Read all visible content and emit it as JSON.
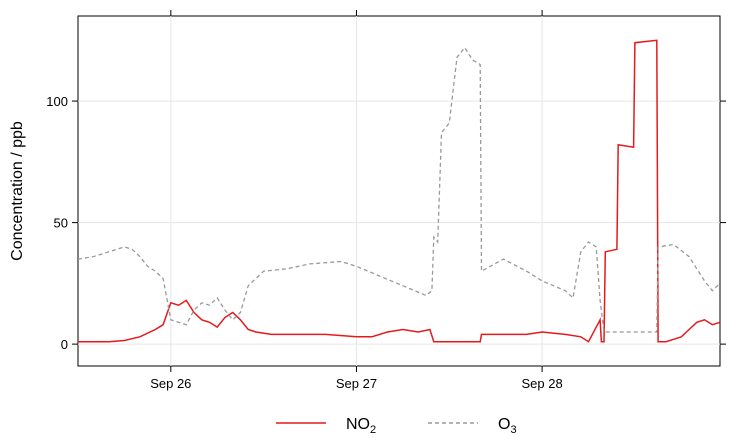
{
  "chart_data": {
    "type": "line",
    "title": "",
    "xlabel": "",
    "ylabel": "Concentration / ppb",
    "xlim": [
      "2020-09-25T12:00",
      "2020-09-28T23:00"
    ],
    "ylim": [
      -9,
      135
    ],
    "x_ticks": [
      "Sep 26",
      "Sep 27",
      "Sep 28"
    ],
    "x_tick_positions": [
      "2020-09-26T00:00",
      "2020-09-27T00:00",
      "2020-09-28T00:00"
    ],
    "y_ticks": [
      0,
      50,
      100
    ],
    "grid": true,
    "legend_position": "bottom",
    "series": [
      {
        "name": "NO",
        "name_sub": "2",
        "color": "#e41a1c",
        "style": "solid",
        "points": [
          [
            "2020-09-25T12:00",
            1
          ],
          [
            "2020-09-25T14:00",
            1
          ],
          [
            "2020-09-25T16:00",
            1
          ],
          [
            "2020-09-25T18:00",
            1.5
          ],
          [
            "2020-09-25T20:00",
            3
          ],
          [
            "2020-09-25T22:00",
            6
          ],
          [
            "2020-09-25T23:00",
            8
          ],
          [
            "2020-09-26T00:00",
            17
          ],
          [
            "2020-09-26T01:00",
            16
          ],
          [
            "2020-09-26T02:00",
            18
          ],
          [
            "2020-09-26T03:00",
            13
          ],
          [
            "2020-09-26T04:00",
            10
          ],
          [
            "2020-09-26T05:00",
            9
          ],
          [
            "2020-09-26T06:00",
            7
          ],
          [
            "2020-09-26T07:00",
            11
          ],
          [
            "2020-09-26T08:00",
            13
          ],
          [
            "2020-09-26T09:00",
            10
          ],
          [
            "2020-09-26T10:00",
            6
          ],
          [
            "2020-09-26T11:00",
            5
          ],
          [
            "2020-09-26T13:00",
            4
          ],
          [
            "2020-09-26T16:00",
            4
          ],
          [
            "2020-09-26T20:00",
            4
          ],
          [
            "2020-09-27T00:00",
            3
          ],
          [
            "2020-09-27T02:00",
            3
          ],
          [
            "2020-09-27T04:00",
            5
          ],
          [
            "2020-09-27T06:00",
            6
          ],
          [
            "2020-09-27T08:00",
            5
          ],
          [
            "2020-09-27T09:30",
            6
          ],
          [
            "2020-09-27T10:00",
            1
          ],
          [
            "2020-09-27T12:00",
            1
          ],
          [
            "2020-09-27T15:00",
            1
          ],
          [
            "2020-09-27T16:00",
            1
          ],
          [
            "2020-09-27T16:10",
            4
          ],
          [
            "2020-09-27T19:00",
            4
          ],
          [
            "2020-09-27T22:00",
            4
          ],
          [
            "2020-09-28T00:00",
            5
          ],
          [
            "2020-09-28T03:00",
            4
          ],
          [
            "2020-09-28T05:00",
            3
          ],
          [
            "2020-09-28T06:00",
            1
          ],
          [
            "2020-09-28T07:30",
            10
          ],
          [
            "2020-09-28T07:40",
            1
          ],
          [
            "2020-09-28T08:00",
            1
          ],
          [
            "2020-09-28T08:10",
            38
          ],
          [
            "2020-09-28T09:40",
            39
          ],
          [
            "2020-09-28T09:50",
            82
          ],
          [
            "2020-09-28T11:50",
            81
          ],
          [
            "2020-09-28T12:00",
            124
          ],
          [
            "2020-09-28T14:50",
            125
          ],
          [
            "2020-09-28T15:00",
            1
          ],
          [
            "2020-09-28T16:00",
            1
          ],
          [
            "2020-09-28T17:00",
            2
          ],
          [
            "2020-09-28T18:00",
            3
          ],
          [
            "2020-09-28T19:00",
            6
          ],
          [
            "2020-09-28T20:00",
            9
          ],
          [
            "2020-09-28T21:00",
            10
          ],
          [
            "2020-09-28T22:00",
            8
          ],
          [
            "2020-09-28T23:00",
            9
          ]
        ]
      },
      {
        "name": "O",
        "name_sub": "3",
        "color": "#999999",
        "style": "dashed",
        "points": [
          [
            "2020-09-25T12:00",
            35
          ],
          [
            "2020-09-25T14:00",
            36
          ],
          [
            "2020-09-25T16:00",
            38
          ],
          [
            "2020-09-25T18:00",
            40
          ],
          [
            "2020-09-25T19:00",
            39
          ],
          [
            "2020-09-25T20:00",
            36
          ],
          [
            "2020-09-25T21:00",
            32
          ],
          [
            "2020-09-25T22:00",
            30
          ],
          [
            "2020-09-25T23:00",
            27
          ],
          [
            "2020-09-26T00:00",
            10
          ],
          [
            "2020-09-26T01:00",
            9
          ],
          [
            "2020-09-26T02:00",
            8
          ],
          [
            "2020-09-26T03:00",
            14
          ],
          [
            "2020-09-26T04:00",
            17
          ],
          [
            "2020-09-26T05:00",
            16
          ],
          [
            "2020-09-26T06:00",
            19
          ],
          [
            "2020-09-26T07:00",
            14
          ],
          [
            "2020-09-26T08:00",
            10
          ],
          [
            "2020-09-26T09:00",
            13
          ],
          [
            "2020-09-26T10:00",
            24
          ],
          [
            "2020-09-26T12:00",
            30
          ],
          [
            "2020-09-26T15:00",
            31
          ],
          [
            "2020-09-26T18:00",
            33
          ],
          [
            "2020-09-26T22:00",
            34
          ],
          [
            "2020-09-27T00:00",
            32
          ],
          [
            "2020-09-27T03:00",
            28
          ],
          [
            "2020-09-27T06:00",
            24
          ],
          [
            "2020-09-27T09:00",
            20
          ],
          [
            "2020-09-27T09:45",
            22
          ],
          [
            "2020-09-27T10:00",
            44
          ],
          [
            "2020-09-27T10:30",
            42
          ],
          [
            "2020-09-27T11:00",
            87
          ],
          [
            "2020-09-27T12:00",
            91
          ],
          [
            "2020-09-27T13:00",
            118
          ],
          [
            "2020-09-27T14:00",
            122
          ],
          [
            "2020-09-27T15:00",
            117
          ],
          [
            "2020-09-27T16:00",
            115
          ],
          [
            "2020-09-27T16:10",
            30
          ],
          [
            "2020-09-27T19:00",
            35
          ],
          [
            "2020-09-27T22:00",
            30
          ],
          [
            "2020-09-28T00:00",
            26
          ],
          [
            "2020-09-28T03:00",
            22
          ],
          [
            "2020-09-28T04:00",
            19
          ],
          [
            "2020-09-28T05:00",
            38
          ],
          [
            "2020-09-28T06:00",
            42
          ],
          [
            "2020-09-28T07:00",
            40
          ],
          [
            "2020-09-28T07:30",
            18
          ],
          [
            "2020-09-28T08:00",
            5
          ],
          [
            "2020-09-28T14:50",
            5
          ],
          [
            "2020-09-28T15:00",
            40
          ],
          [
            "2020-09-28T17:00",
            41
          ],
          [
            "2020-09-28T19:00",
            36
          ],
          [
            "2020-09-28T21:00",
            26
          ],
          [
            "2020-09-28T22:00",
            22
          ],
          [
            "2020-09-28T23:00",
            25
          ]
        ]
      }
    ]
  }
}
